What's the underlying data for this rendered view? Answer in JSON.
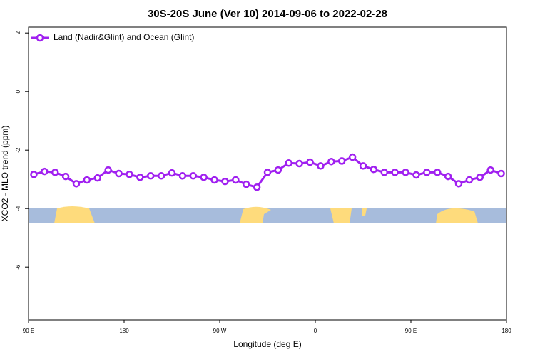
{
  "chart_data": {
    "type": "line",
    "title": "30S-20S June (Ver 10)   2014-09-06 to 2022-02-28",
    "x_label": "Longitude (deg E)",
    "y_label": "XCO2 - MLO trend (ppm)",
    "x": [
      95,
      105,
      115,
      125,
      135,
      145,
      155,
      165,
      175,
      185,
      195,
      205,
      215,
      225,
      235,
      245,
      255,
      265,
      275,
      285,
      295,
      305,
      315,
      325,
      335,
      345,
      355,
      365,
      375,
      385,
      395,
      405,
      415,
      425,
      435,
      445,
      455,
      465,
      475,
      485,
      495,
      505,
      515,
      525,
      535
    ],
    "series": [
      {
        "name": "Land (Nadir&Glint) and Ocean (Glint)",
        "color": "#a020f0",
        "values": [
          -2.83,
          -2.73,
          -2.76,
          -2.9,
          -3.15,
          -3.02,
          -2.95,
          -2.68,
          -2.8,
          -2.83,
          -2.93,
          -2.88,
          -2.88,
          -2.78,
          -2.88,
          -2.88,
          -2.93,
          -3.02,
          -3.07,
          -3.02,
          -3.17,
          -3.27,
          -2.76,
          -2.68,
          -2.44,
          -2.46,
          -2.41,
          -2.54,
          -2.39,
          -2.37,
          -2.24,
          -2.54,
          -2.66,
          -2.76,
          -2.76,
          -2.76,
          -2.85,
          -2.76,
          -2.76,
          -2.9,
          -3.15,
          -3.02,
          -2.93,
          -2.68,
          -2.8
        ]
      }
    ],
    "xlim": [
      90,
      540
    ],
    "xticks": [
      {
        "value": 90,
        "label": "90 E"
      },
      180,
      {
        "value": 270,
        "label": "90 W"
      },
      {
        "value": 360,
        "label": "0"
      },
      {
        "value": 450,
        "label": "90 E"
      },
      {
        "value": 540,
        "label": "180"
      }
    ],
    "ylim": [
      -7.8,
      2.2
    ],
    "yticks": [
      -6,
      -4,
      -2,
      0,
      2
    ],
    "legend": "top-left"
  }
}
